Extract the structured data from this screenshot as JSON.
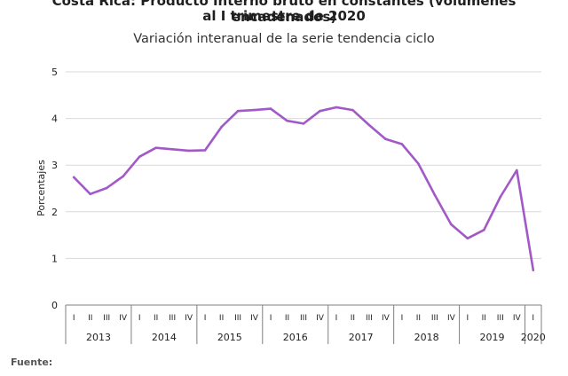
{
  "title_line1": "Costa Rica: Producto Interno bruto en constantes (volúmenes encadenados)",
  "title_line2": "al I trimestre de 2020",
  "subtitle": "Variación interanual de la serie tendencia ciclo",
  "source_label": "Fuente:",
  "colors": {
    "line": "#a259c8",
    "grid": "#d9d9d9",
    "axis": "#7f7f7f"
  },
  "chart_data": {
    "type": "line",
    "title": "Variación interanual de la serie tendencia ciclo",
    "ylabel": "Porcentajes",
    "xlabel": "",
    "ylim": [
      0,
      5
    ],
    "yticks": [
      0,
      1,
      2,
      3,
      4,
      5
    ],
    "grid": true,
    "years": [
      {
        "label": "2013",
        "quarters": [
          "I",
          "II",
          "III",
          "IV"
        ]
      },
      {
        "label": "2014",
        "quarters": [
          "I",
          "II",
          "III",
          "IV"
        ]
      },
      {
        "label": "2015",
        "quarters": [
          "I",
          "II",
          "III",
          "IV"
        ]
      },
      {
        "label": "2016",
        "quarters": [
          "I",
          "II",
          "III",
          "IV"
        ]
      },
      {
        "label": "2017",
        "quarters": [
          "I",
          "II",
          "III",
          "IV"
        ]
      },
      {
        "label": "2018",
        "quarters": [
          "I",
          "II",
          "III",
          "IV"
        ]
      },
      {
        "label": "2019",
        "quarters": [
          "I",
          "II",
          "III",
          "IV"
        ]
      },
      {
        "label": "2020",
        "quarters": [
          "I"
        ]
      }
    ],
    "series": [
      {
        "values": [
          2.74,
          2.38,
          2.51,
          2.76,
          3.18,
          3.37,
          3.34,
          3.31,
          3.32,
          3.82,
          4.16,
          4.18,
          4.21,
          3.95,
          3.89,
          4.16,
          4.24,
          4.18,
          3.86,
          3.56,
          3.45,
          3.03,
          2.36,
          1.73,
          1.43,
          1.61,
          2.32,
          2.89,
          0.75
        ]
      }
    ]
  }
}
